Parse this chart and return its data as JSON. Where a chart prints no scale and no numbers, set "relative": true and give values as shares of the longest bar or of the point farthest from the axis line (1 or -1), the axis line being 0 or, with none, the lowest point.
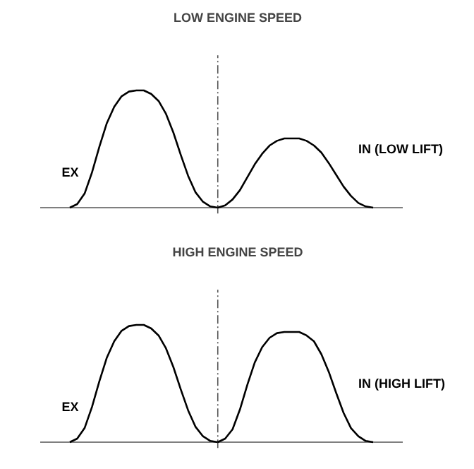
{
  "chart_data": [
    {
      "type": "line",
      "title": "LOW ENGINE SPEED",
      "relative": true,
      "legend": false,
      "tick_labels": false,
      "grid": false,
      "categories": [
        null,
        null,
        null,
        null,
        null,
        null,
        null,
        null,
        null,
        null,
        null,
        null,
        null,
        null,
        null,
        null,
        null,
        null,
        null,
        null,
        null,
        null,
        null,
        null,
        null,
        null,
        null,
        null,
        null,
        null,
        null,
        null,
        null,
        null,
        null,
        null,
        null,
        null,
        null,
        null,
        null,
        null,
        null,
        null,
        null,
        null,
        null,
        null,
        null,
        null
      ],
      "series": [
        {
          "name": "EX",
          "color": "#000000",
          "values": [
            null,
            null,
            null,
            null,
            0,
            0.03,
            0.12,
            0.3,
            0.52,
            0.72,
            0.86,
            0.95,
            0.99,
            1.0,
            1.0,
            0.97,
            0.91,
            0.8,
            0.64,
            0.45,
            0.27,
            0.13,
            0.05,
            0.01,
            0,
            null,
            null,
            null,
            null,
            null,
            null,
            null,
            null,
            null,
            null,
            null,
            null,
            null,
            null,
            null,
            null,
            null,
            null,
            null,
            null,
            null,
            null,
            null,
            null,
            null
          ]
        },
        {
          "name": "IN (LOW LIFT)",
          "color": "#000000",
          "values": [
            null,
            null,
            null,
            null,
            null,
            null,
            null,
            null,
            null,
            null,
            null,
            null,
            null,
            null,
            null,
            null,
            null,
            null,
            null,
            null,
            null,
            null,
            null,
            null,
            0,
            0.02,
            0.07,
            0.15,
            0.26,
            0.37,
            0.46,
            0.53,
            0.57,
            0.59,
            0.59,
            0.59,
            0.57,
            0.53,
            0.47,
            0.38,
            0.28,
            0.18,
            0.1,
            0.04,
            0.01,
            0,
            null,
            null,
            null,
            null
          ]
        }
      ]
    },
    {
      "type": "line",
      "title": "HIGH ENGINE SPEED",
      "relative": true,
      "legend": false,
      "tick_labels": false,
      "grid": false,
      "categories": [
        null,
        null,
        null,
        null,
        null,
        null,
        null,
        null,
        null,
        null,
        null,
        null,
        null,
        null,
        null,
        null,
        null,
        null,
        null,
        null,
        null,
        null,
        null,
        null,
        null,
        null,
        null,
        null,
        null,
        null,
        null,
        null,
        null,
        null,
        null,
        null,
        null,
        null,
        null,
        null,
        null,
        null,
        null,
        null,
        null,
        null,
        null,
        null,
        null,
        null
      ],
      "series": [
        {
          "name": "EX",
          "color": "#000000",
          "values": [
            null,
            null,
            null,
            null,
            0,
            0.03,
            0.12,
            0.3,
            0.52,
            0.72,
            0.86,
            0.95,
            0.99,
            1.0,
            1.0,
            0.97,
            0.91,
            0.8,
            0.64,
            0.45,
            0.27,
            0.13,
            0.05,
            0.01,
            0,
            null,
            null,
            null,
            null,
            null,
            null,
            null,
            null,
            null,
            null,
            null,
            null,
            null,
            null,
            null,
            null,
            null,
            null,
            null,
            null,
            null,
            null,
            null,
            null,
            null
          ]
        },
        {
          "name": "IN (HIGH LIFT)",
          "color": "#000000",
          "values": [
            null,
            null,
            null,
            null,
            null,
            null,
            null,
            null,
            null,
            null,
            null,
            null,
            null,
            null,
            null,
            null,
            null,
            null,
            null,
            null,
            null,
            null,
            null,
            null,
            0,
            0.03,
            0.11,
            0.28,
            0.49,
            0.68,
            0.81,
            0.89,
            0.93,
            0.94,
            0.94,
            0.94,
            0.91,
            0.86,
            0.75,
            0.6,
            0.42,
            0.25,
            0.12,
            0.05,
            0.01,
            0,
            null,
            null,
            null,
            null
          ]
        }
      ]
    }
  ]
}
